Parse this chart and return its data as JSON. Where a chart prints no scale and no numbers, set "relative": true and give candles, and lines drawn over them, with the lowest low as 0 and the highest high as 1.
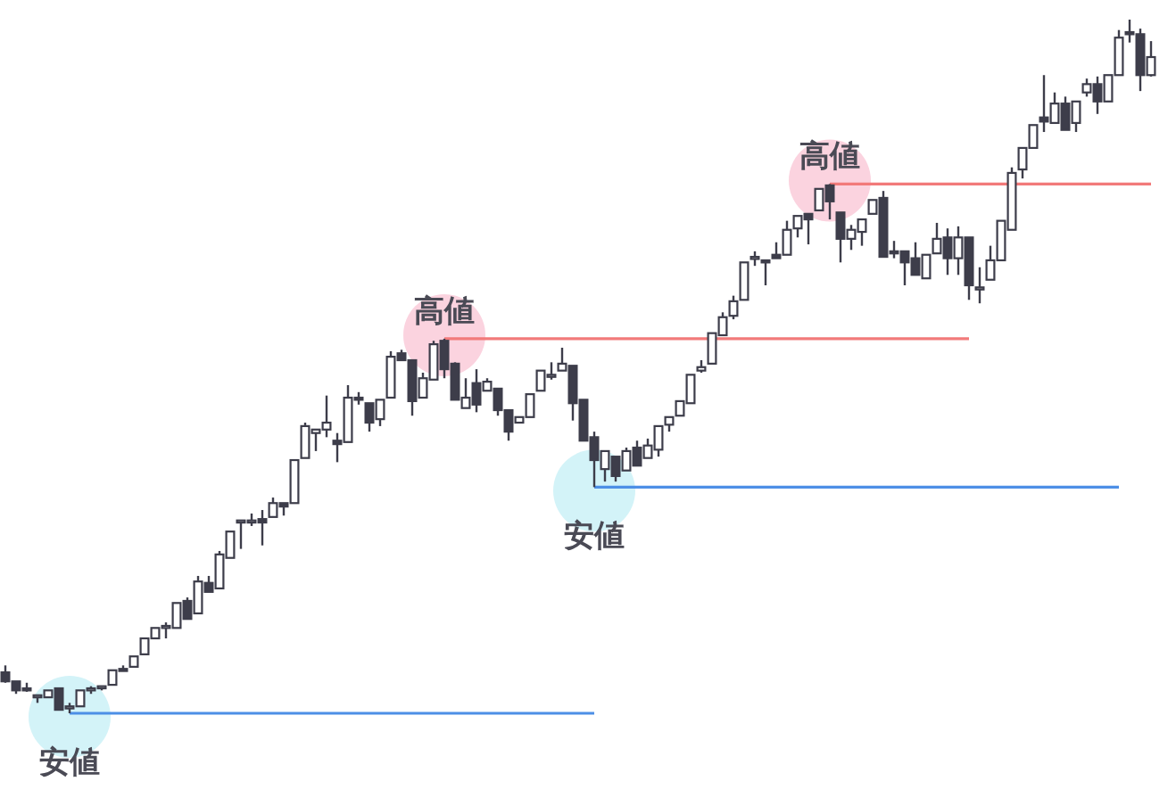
{
  "chart_data": {
    "type": "candlestick",
    "relative": true,
    "categories": [
      null,
      null,
      null,
      null,
      null,
      null,
      null,
      null,
      null,
      null,
      null,
      null,
      null,
      null,
      null,
      null,
      null,
      null,
      null,
      null,
      null,
      null,
      null,
      null,
      null,
      null,
      null,
      null,
      null,
      null,
      null,
      null,
      null,
      null,
      null,
      null,
      null,
      null,
      null,
      null,
      null,
      null,
      null,
      null,
      null,
      null,
      null,
      null,
      null,
      null,
      null,
      null,
      null,
      null,
      null,
      null,
      null,
      null,
      null,
      null,
      null,
      null,
      null,
      null,
      null,
      null,
      null,
      null,
      null,
      null,
      null,
      null,
      null,
      null,
      null,
      null,
      null,
      null,
      null,
      null,
      null,
      null,
      null,
      null,
      null,
      null,
      null,
      null,
      null,
      null,
      null,
      null,
      null,
      null,
      null,
      null,
      null,
      null,
      null,
      null,
      null,
      null,
      null,
      null,
      null,
      null,
      null,
      null
    ],
    "ohlc": [
      [
        0.059,
        0.069,
        0.044,
        0.046
      ],
      [
        0.046,
        0.046,
        0.028,
        0.033
      ],
      [
        0.036,
        0.044,
        0.031,
        0.033
      ],
      [
        0.023,
        0.026,
        0.015,
        0.026
      ],
      [
        0.023,
        0.033,
        0.023,
        0.033
      ],
      [
        0.036,
        0.036,
        0.005,
        0.005
      ],
      [
        0.008,
        0.015,
        0,
        0.01
      ],
      [
        0.01,
        0.033,
        0.01,
        0.033
      ],
      [
        0.033,
        0.039,
        0.028,
        0.036
      ],
      [
        0.036,
        0.039,
        0.033,
        0.039
      ],
      [
        0.041,
        0.062,
        0.041,
        0.062
      ],
      [
        0.064,
        0.069,
        0.062,
        0.062
      ],
      [
        0.067,
        0.082,
        0.067,
        0.082
      ],
      [
        0.085,
        0.108,
        0.085,
        0.108
      ],
      [
        0.108,
        0.123,
        0.108,
        0.123
      ],
      [
        0.123,
        0.131,
        0.108,
        0.126
      ],
      [
        0.123,
        0.159,
        0.123,
        0.159
      ],
      [
        0.162,
        0.167,
        0.136,
        0.136
      ],
      [
        0.144,
        0.198,
        0.144,
        0.19
      ],
      [
        0.188,
        0.198,
        0.175,
        0.175
      ],
      [
        0.18,
        0.234,
        0.18,
        0.229
      ],
      [
        0.224,
        0.262,
        0.224,
        0.262
      ],
      [
        0.278,
        0.278,
        0.237,
        0.278
      ],
      [
        0.278,
        0.288,
        0.27,
        0.278
      ],
      [
        0.28,
        0.293,
        0.242,
        0.275
      ],
      [
        0.283,
        0.311,
        0.283,
        0.303
      ],
      [
        0.303,
        0.303,
        0.285,
        0.298
      ],
      [
        0.303,
        0.365,
        0.303,
        0.365
      ],
      [
        0.368,
        0.419,
        0.368,
        0.414
      ],
      [
        0.404,
        0.409,
        0.378,
        0.409
      ],
      [
        0.409,
        0.458,
        0.398,
        0.419
      ],
      [
        0.393,
        0.404,
        0.362,
        0.388
      ],
      [
        0.391,
        0.473,
        0.391,
        0.455
      ],
      [
        0.455,
        0.463,
        0.445,
        0.452
      ],
      [
        0.447,
        0.447,
        0.406,
        0.419
      ],
      [
        0.424,
        0.452,
        0.414,
        0.452
      ],
      [
        0.455,
        0.522,
        0.455,
        0.514
      ],
      [
        0.519,
        0.524,
        0.509,
        0.509
      ],
      [
        0.509,
        0.509,
        0.429,
        0.45
      ],
      [
        0.455,
        0.491,
        0.455,
        0.483
      ],
      [
        0.481,
        0.537,
        0.481,
        0.532
      ],
      [
        0.537,
        0.54,
        0.483,
        0.496
      ],
      [
        0.504,
        0.506,
        0.452,
        0.452
      ],
      [
        0.44,
        0.483,
        0.44,
        0.455
      ],
      [
        0.476,
        0.496,
        0.434,
        0.445
      ],
      [
        0.465,
        0.483,
        0.465,
        0.478
      ],
      [
        0.468,
        0.468,
        0.429,
        0.437
      ],
      [
        0.437,
        0.437,
        0.393,
        0.406
      ],
      [
        0.419,
        0.427,
        0.419,
        0.427
      ],
      [
        0.427,
        0.46,
        0.427,
        0.46
      ],
      [
        0.465,
        0.494,
        0.465,
        0.494
      ],
      [
        0.486,
        0.506,
        0.481,
        0.488
      ],
      [
        0.494,
        0.527,
        0.494,
        0.504
      ],
      [
        0.501,
        0.501,
        0.422,
        0.447
      ],
      [
        0.452,
        0.452,
        0.393,
        0.393
      ],
      [
        0.398,
        0.406,
        0.326,
        0.365
      ],
      [
        0.352,
        0.378,
        0.334,
        0.378
      ],
      [
        0.37,
        0.37,
        0.334,
        0.342
      ],
      [
        0.35,
        0.383,
        0.35,
        0.378
      ],
      [
        0.383,
        0.393,
        0.357,
        0.357
      ],
      [
        0.368,
        0.396,
        0.368,
        0.386
      ],
      [
        0.38,
        0.414,
        0.37,
        0.414
      ],
      [
        0.416,
        0.427,
        0.406,
        0.427
      ],
      [
        0.429,
        0.45,
        0.429,
        0.45
      ],
      [
        0.447,
        0.488,
        0.447,
        0.488
      ],
      [
        0.494,
        0.509,
        0.491,
        0.499
      ],
      [
        0.504,
        0.548,
        0.504,
        0.548
      ],
      [
        0.545,
        0.578,
        0.545,
        0.571
      ],
      [
        0.573,
        0.602,
        0.568,
        0.594
      ],
      [
        0.596,
        0.65,
        0.596,
        0.65
      ],
      [
        0.656,
        0.666,
        0.645,
        0.658
      ],
      [
        0.653,
        0.653,
        0.617,
        0.65
      ],
      [
        0.661,
        0.679,
        0.656,
        0.656
      ],
      [
        0.661,
        0.71,
        0.661,
        0.697
      ],
      [
        0.699,
        0.717,
        0.686,
        0.717
      ],
      [
        0.72,
        0.72,
        0.676,
        0.712
      ],
      [
        0.725,
        0.756,
        0.725,
        0.756
      ],
      [
        0.761,
        0.763,
        0.712,
        0.738
      ],
      [
        0.722,
        0.722,
        0.65,
        0.684
      ],
      [
        0.684,
        0.704,
        0.668,
        0.697
      ],
      [
        0.694,
        0.712,
        0.674,
        0.712
      ],
      [
        0.72,
        0.74,
        0.72,
        0.74
      ],
      [
        0.743,
        0.753,
        0.658,
        0.658
      ],
      [
        0.666,
        0.681,
        0.656,
        0.663
      ],
      [
        0.666,
        0.666,
        0.617,
        0.65
      ],
      [
        0.656,
        0.679,
        0.632,
        0.632
      ],
      [
        0.627,
        0.661,
        0.627,
        0.661
      ],
      [
        0.663,
        0.707,
        0.663,
        0.684
      ],
      [
        0.686,
        0.699,
        0.632,
        0.656
      ],
      [
        0.656,
        0.702,
        0.632,
        0.686
      ],
      [
        0.686,
        0.686,
        0.596,
        0.617
      ],
      [
        0.612,
        0.643,
        0.591,
        0.614
      ],
      [
        0.625,
        0.674,
        0.625,
        0.653
      ],
      [
        0.653,
        0.71,
        0.653,
        0.71
      ],
      [
        0.697,
        0.787,
        0.697,
        0.779
      ],
      [
        0.784,
        0.815,
        0.771,
        0.815
      ],
      [
        0.815,
        0.848,
        0.815,
        0.848
      ],
      [
        0.859,
        0.92,
        0.838,
        0.853
      ],
      [
        0.851,
        0.895,
        0.851,
        0.879
      ],
      [
        0.879,
        0.889,
        0.841,
        0.841
      ],
      [
        0.851,
        0.882,
        0.838,
        0.882
      ],
      [
        0.895,
        0.915,
        0.889,
        0.907
      ],
      [
        0.907,
        0.918,
        0.864,
        0.882
      ],
      [
        0.882,
        0.92,
        0.882,
        0.92
      ],
      [
        0.92,
        0.985,
        0.92,
        0.974
      ],
      [
        0.982,
        1,
        0.967,
        0.979
      ],
      [
        0.979,
        0.987,
        0.897,
        0.92
      ],
      [
        0.92,
        0.969,
        0.918,
        0.946
      ]
    ],
    "annotations": [
      {
        "text": "安値",
        "y": 0
      },
      {
        "text": "高値",
        "y": 0.54
      },
      {
        "text": "安値",
        "y": 0.326
      },
      {
        "text": "高値",
        "y": 0.763
      }
    ]
  }
}
